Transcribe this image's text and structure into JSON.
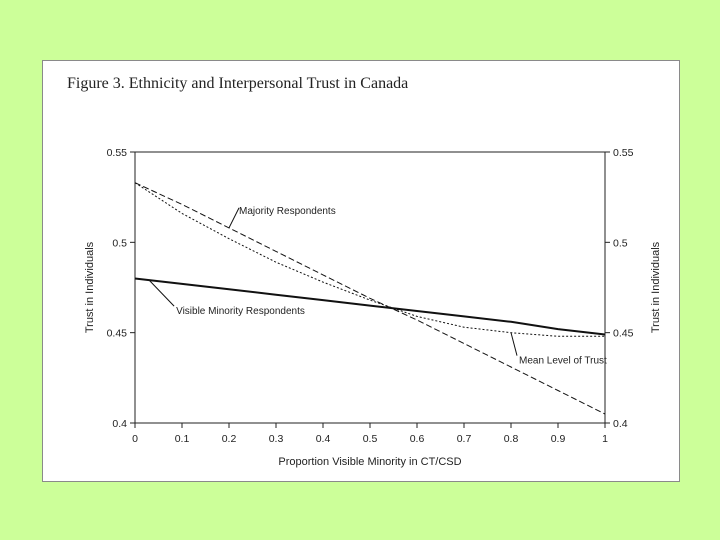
{
  "figure_title": "Figure 3. Ethnicity and Interpersonal Trust in Canada",
  "chart_data": {
    "type": "line",
    "title": "Figure 3. Ethnicity and Interpersonal Trust in Canada",
    "xlabel": "Proportion Visible Minority in CT/CSD",
    "ylabel": "Trust in Individuals",
    "ylabel_right": "Trust in Individuals",
    "xlim": [
      0,
      1
    ],
    "ylim": [
      0.4,
      0.55
    ],
    "x_ticks": [
      0,
      0.1,
      0.2,
      0.3,
      0.4,
      0.5,
      0.6,
      0.7,
      0.8,
      0.9,
      1
    ],
    "x_tick_labels": [
      "0",
      "0.1",
      "0.2",
      "0.3",
      "0.4",
      "0.5",
      "0.6",
      "0.7",
      "0.8",
      "0.9",
      "1"
    ],
    "y_ticks": [
      0.4,
      0.45,
      0.5,
      0.55
    ],
    "y_tick_labels": [
      "0.4",
      "0.45",
      "0.5",
      "0.55"
    ],
    "grid": false,
    "series": [
      {
        "name": "Majority Respondents",
        "style": "dashed",
        "x": [
          0,
          0.1,
          0.2,
          0.3,
          0.4,
          0.5,
          0.6,
          0.7,
          0.8,
          0.9,
          1
        ],
        "y": [
          0.533,
          0.521,
          0.508,
          0.495,
          0.482,
          0.469,
          0.457,
          0.444,
          0.431,
          0.418,
          0.405
        ]
      },
      {
        "name": "Visible Minority Respondents",
        "style": "solid",
        "x": [
          0,
          0.1,
          0.2,
          0.3,
          0.4,
          0.5,
          0.6,
          0.7,
          0.8,
          0.9,
          1
        ],
        "y": [
          0.48,
          0.477,
          0.474,
          0.471,
          0.468,
          0.465,
          0.462,
          0.459,
          0.456,
          0.452,
          0.449
        ]
      },
      {
        "name": "Mean Level of Trust",
        "style": "dotted",
        "x": [
          0,
          0.1,
          0.2,
          0.3,
          0.4,
          0.5,
          0.6,
          0.7,
          0.8,
          0.9,
          1
        ],
        "y": [
          0.533,
          0.516,
          0.502,
          0.489,
          0.478,
          0.468,
          0.459,
          0.453,
          0.45,
          0.448,
          0.448
        ]
      }
    ],
    "annotations": [
      {
        "text": "Majority Respondents",
        "series": "Majority Respondents",
        "at_x": 0.2
      },
      {
        "text": "Visible Minority Respondents",
        "series": "Visible Minority Respondents",
        "at_x": 0.03
      },
      {
        "text": "Mean Level of Trust",
        "series": "Mean Level of Trust",
        "at_x": 0.8
      }
    ]
  }
}
